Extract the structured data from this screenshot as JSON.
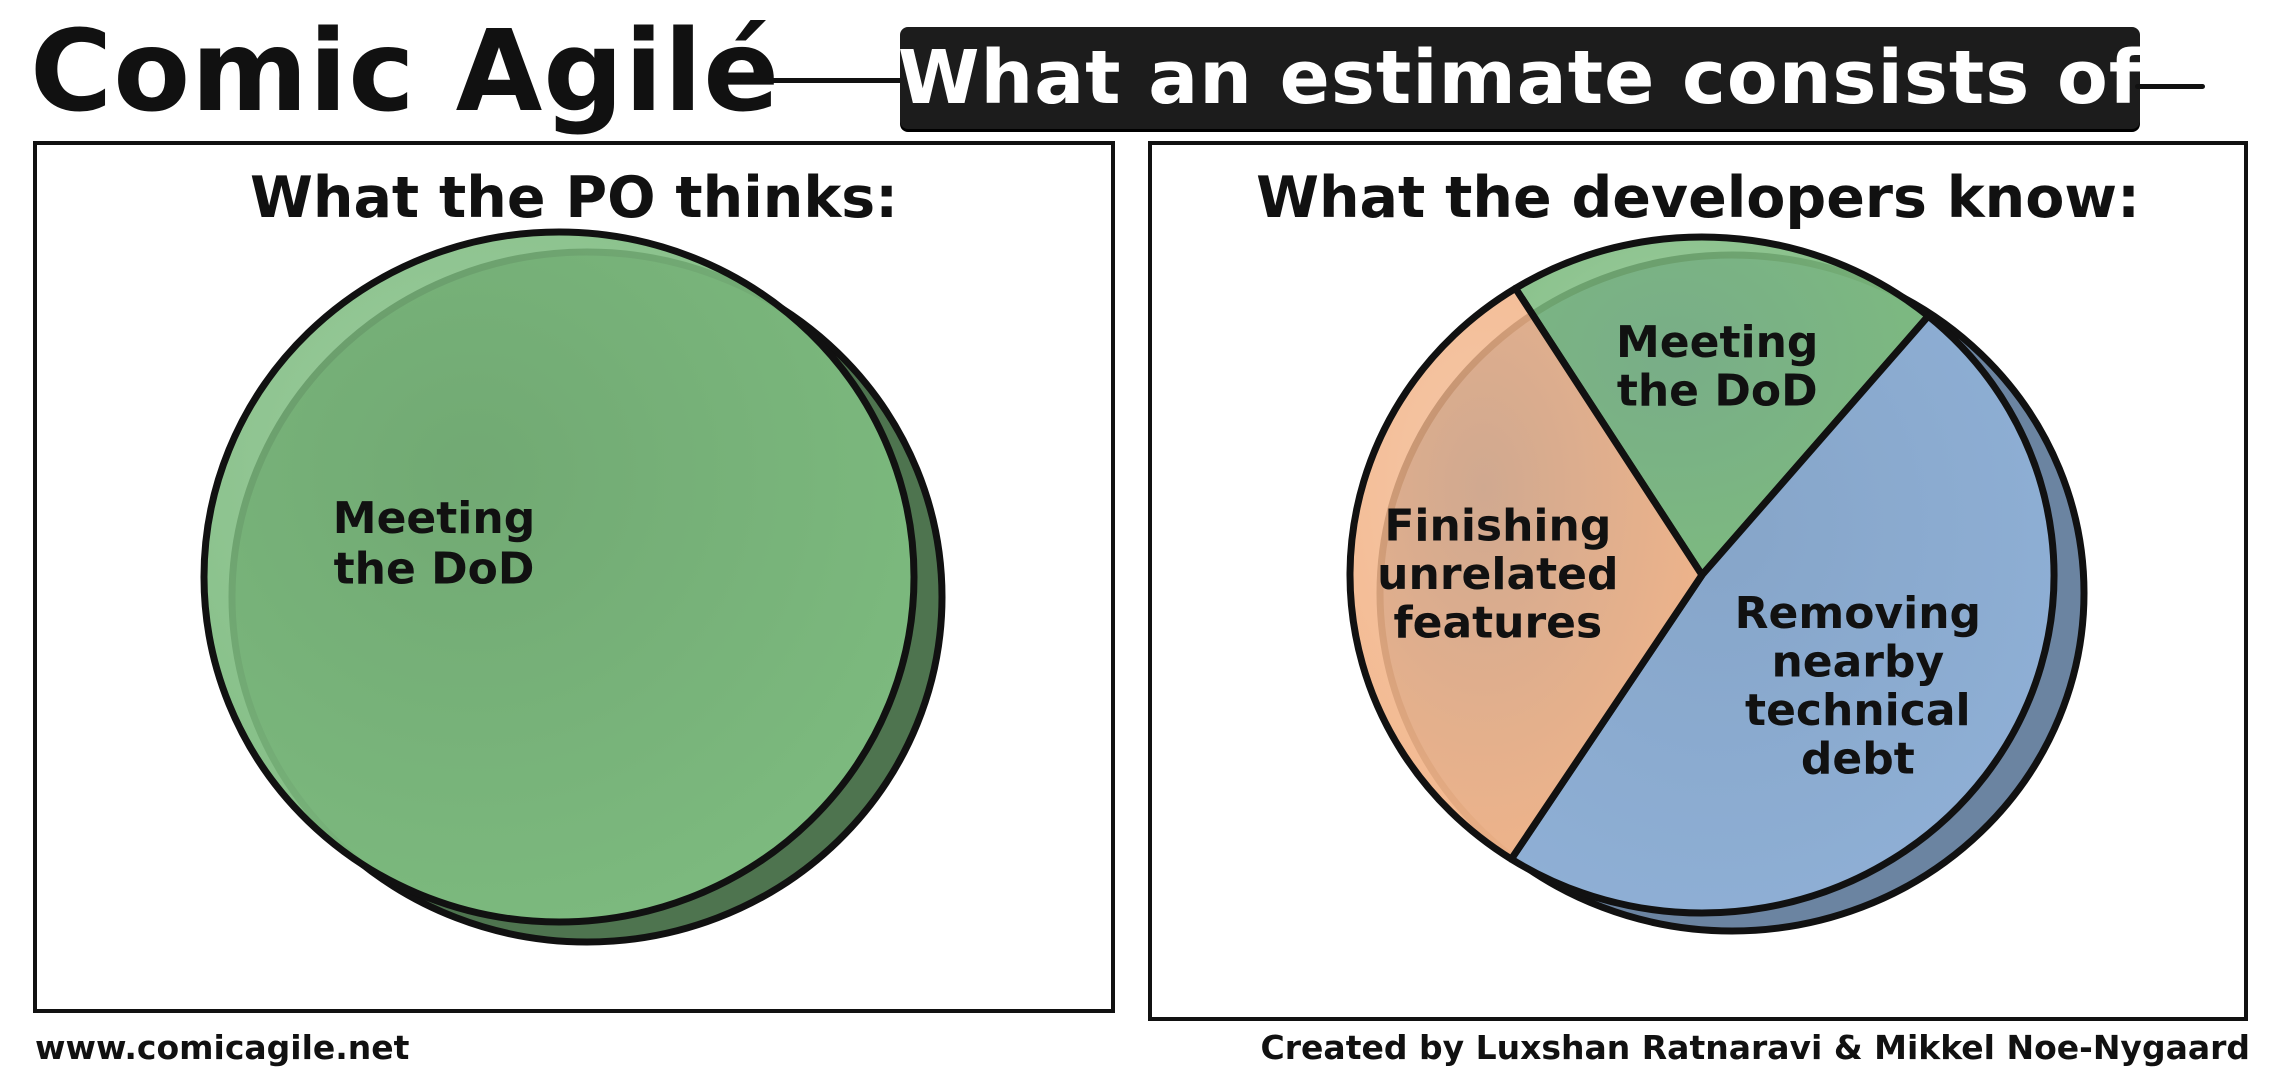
{
  "header": {
    "brand": "Comic Agilé",
    "banner": "What an estimate consists of"
  },
  "footer": {
    "website": "www.comicagile.net",
    "credits": "Created by Luxshan Ratnaravi & Mikkel Noe-Nygaard"
  },
  "colors": {
    "green": "#7dbb7f",
    "green_dark": "#3f9a3f",
    "orange": "#f2b58a",
    "blue": "#8fb0d6",
    "blue_dark": "#5f8fc4",
    "ink": "#111111"
  },
  "chart_data": [
    {
      "type": "pie",
      "title": "What the PO thinks:",
      "slices": [
        {
          "label_lines": [
            "Meeting",
            "the DoD"
          ],
          "value": 100,
          "color": "#7dbb7f"
        }
      ]
    },
    {
      "type": "pie",
      "title": "What the developers know:",
      "slices": [
        {
          "label_lines": [
            "Meeting",
            "the DoD"
          ],
          "value": 20,
          "color": "#7dbb7f"
        },
        {
          "label_lines": [
            "Removing",
            "nearby",
            "technical",
            "debt"
          ],
          "value": 48,
          "color": "#8fb0d6"
        },
        {
          "label_lines": [
            "Finishing",
            "unrelated",
            "features"
          ],
          "value": 32,
          "color": "#f2b58a"
        }
      ]
    }
  ]
}
